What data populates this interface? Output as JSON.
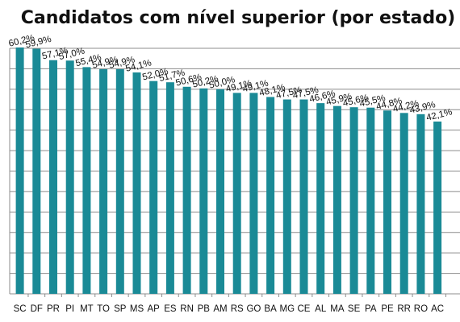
{
  "chart_data": {
    "type": "bar",
    "title": "Candidatos com nível superior (por estado)",
    "xlabel": "",
    "ylabel": "",
    "ylim": [
      0,
      60
    ],
    "grid": true,
    "legend": "none",
    "bar_color": "#1a8a96",
    "categories": [
      "SC",
      "DF",
      "PR",
      "PI",
      "MT",
      "TO",
      "SP",
      "MS",
      "AP",
      "ES",
      "RN",
      "PB",
      "AM",
      "RS",
      "GO",
      "BA",
      "MG",
      "CE",
      "AL",
      "MA",
      "SE",
      "PA",
      "PE",
      "RR",
      "RO",
      "AC"
    ],
    "values": [
      60.2,
      59.9,
      57.1,
      57.0,
      55.4,
      54.9,
      54.9,
      54.1,
      52.0,
      51.7,
      50.6,
      50.2,
      50.0,
      49.1,
      49.1,
      48.1,
      47.5,
      47.5,
      46.6,
      45.9,
      45.6,
      45.5,
      44.8,
      44.2,
      43.9,
      42.1
    ],
    "data_labels": [
      "60,2%",
      "59,9%",
      "57,1%",
      "57,0%",
      "55,4%",
      "54,9%",
      "54,9%",
      "54,1%",
      "52,0%",
      "51,7%",
      "50,6%",
      "50,2%",
      "50,0%",
      "49,1%",
      "49,1%",
      "48,1%",
      "47,5%",
      "47,5%",
      "46,6%",
      "45,9%",
      "45,6%",
      "45,5%",
      "44,8%",
      "44,2%",
      "43,9%",
      "42,1%"
    ]
  }
}
